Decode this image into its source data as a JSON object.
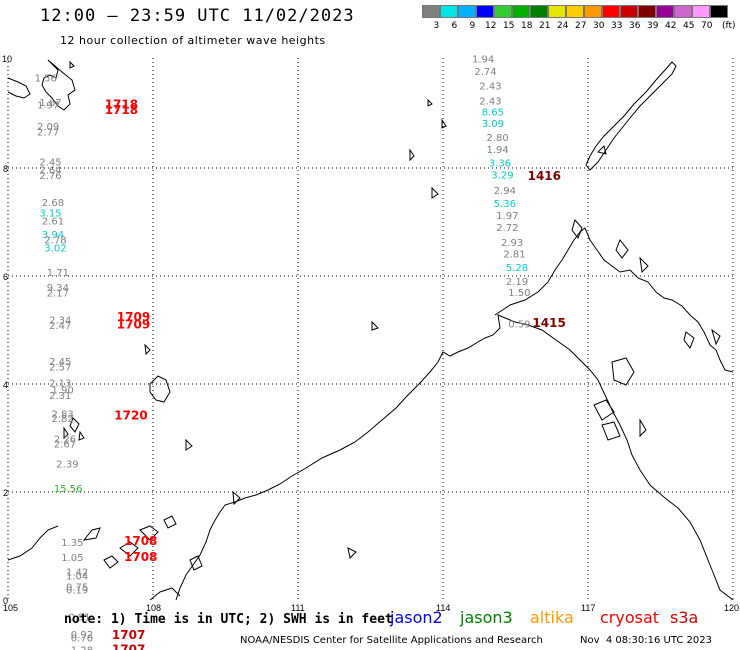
{
  "header": {
    "title": "12:00 – 23:59 UTC 11/02/2023",
    "subtitle": "12 hour collection of altimeter wave heights"
  },
  "legend": {
    "unit": "(ft)",
    "bins": [
      {
        "label": "3",
        "color": "#808080"
      },
      {
        "label": "6",
        "color": "#00e5e5"
      },
      {
        "label": "9",
        "color": "#00b2ff"
      },
      {
        "label": "12",
        "color": "#0000ff"
      },
      {
        "label": "15",
        "color": "#33cc33"
      },
      {
        "label": "18",
        "color": "#00b000"
      },
      {
        "label": "21",
        "color": "#008000"
      },
      {
        "label": "24",
        "color": "#e5e500"
      },
      {
        "label": "27",
        "color": "#ffcc00"
      },
      {
        "label": "30",
        "color": "#ff9900"
      },
      {
        "label": "33",
        "color": "#ff0000"
      },
      {
        "label": "36",
        "color": "#cc0000"
      },
      {
        "label": "39",
        "color": "#800000"
      },
      {
        "label": "42",
        "color": "#990099"
      },
      {
        "label": "45",
        "color": "#cc66cc"
      },
      {
        "label": "70",
        "color": "#ff99ff"
      },
      {
        "label": "",
        "color": "#000000"
      }
    ]
  },
  "axes": {
    "lon_labels": [
      "105",
      "108",
      "111",
      "114",
      "117",
      "120"
    ],
    "lat_labels": [
      "10",
      "8",
      "6",
      "4",
      "2",
      "0"
    ]
  },
  "wave_tracks": [
    {
      "id": "west-track",
      "readings": [
        {
          "lon": 105.55,
          "lat": 9.6,
          "value": "1.56",
          "color": "#808080"
        },
        {
          "lon": 105.65,
          "lat": 9.15,
          "value": "1.67",
          "color": "#808080"
        },
        {
          "lon": 105.6,
          "lat": 9.1,
          "value": "1.97",
          "color": "#808080"
        },
        {
          "lon": 105.6,
          "lat": 8.7,
          "value": "2.09",
          "color": "#808080"
        },
        {
          "lon": 105.6,
          "lat": 8.6,
          "value": "2.77",
          "color": "#808080"
        },
        {
          "lon": 105.65,
          "lat": 8.05,
          "value": "2.45",
          "color": "#808080"
        },
        {
          "lon": 105.65,
          "lat": 7.9,
          "value": "2.64",
          "color": "#808080"
        },
        {
          "lon": 105.65,
          "lat": 7.8,
          "value": "2.76",
          "color": "#808080"
        },
        {
          "lon": 105.7,
          "lat": 7.3,
          "value": "2.68",
          "color": "#808080"
        },
        {
          "lon": 105.65,
          "lat": 7.1,
          "value": "3.15",
          "color": "#00cccc"
        },
        {
          "lon": 105.7,
          "lat": 6.95,
          "value": "2.61",
          "color": "#808080"
        },
        {
          "lon": 105.7,
          "lat": 6.7,
          "value": "3.94",
          "color": "#00cccc"
        },
        {
          "lon": 105.75,
          "lat": 6.6,
          "value": "2.78",
          "color": "#808080"
        },
        {
          "lon": 105.75,
          "lat": 6.45,
          "value": "3.02",
          "color": "#00cccc"
        },
        {
          "lon": 105.8,
          "lat": 6.0,
          "value": "1.71",
          "color": "#808080"
        },
        {
          "lon": 105.8,
          "lat": 5.72,
          "value": "9.34",
          "color": "#808080"
        },
        {
          "lon": 105.8,
          "lat": 5.62,
          "value": "2.17",
          "color": "#808080"
        },
        {
          "lon": 105.85,
          "lat": 5.12,
          "value": "2.34",
          "color": "#808080"
        },
        {
          "lon": 105.85,
          "lat": 5.02,
          "value": "2.47",
          "color": "#808080"
        },
        {
          "lon": 105.85,
          "lat": 4.35,
          "value": "2.45",
          "color": "#808080"
        },
        {
          "lon": 105.85,
          "lat": 4.25,
          "value": "2.57",
          "color": "#808080"
        },
        {
          "lon": 105.85,
          "lat": 3.95,
          "value": "2.13",
          "color": "#808080"
        },
        {
          "lon": 105.9,
          "lat": 3.82,
          "value": "1.90",
          "color": "#808080"
        },
        {
          "lon": 105.85,
          "lat": 3.72,
          "value": "2.31",
          "color": "#808080"
        },
        {
          "lon": 105.9,
          "lat": 3.38,
          "value": "2.83",
          "color": "#808080"
        },
        {
          "lon": 105.9,
          "lat": 3.3,
          "value": "2.82",
          "color": "#808080"
        },
        {
          "lon": 105.95,
          "lat": 2.92,
          "value": "2.26",
          "color": "#808080"
        },
        {
          "lon": 105.95,
          "lat": 2.82,
          "value": "2.67",
          "color": "#808080"
        },
        {
          "lon": 106.0,
          "lat": 2.45,
          "value": "2.39",
          "color": "#808080"
        },
        {
          "lon": 105.95,
          "lat": 2.0,
          "value": "15.56",
          "color": "#33aa33"
        },
        {
          "lon": 106.1,
          "lat": 1.0,
          "value": "1.35",
          "color": "#808080"
        },
        {
          "lon": 106.1,
          "lat": 0.72,
          "value": "1.05",
          "color": "#808080"
        },
        {
          "lon": 106.2,
          "lat": 0.45,
          "value": "1.42",
          "color": "#808080"
        },
        {
          "lon": 106.2,
          "lat": 0.38,
          "value": "1.04",
          "color": "#808080"
        },
        {
          "lon": 106.2,
          "lat": 0.18,
          "value": "0.75",
          "color": "#808080"
        },
        {
          "lon": 106.2,
          "lat": 0.12,
          "value": "0.19",
          "color": "#808080"
        },
        {
          "lon": 106.25,
          "lat": -0.38,
          "value": "0.91",
          "color": "#808080"
        },
        {
          "lon": 106.3,
          "lat": -0.7,
          "value": "0.92",
          "color": "#808080"
        },
        {
          "lon": 106.3,
          "lat": -0.77,
          "value": "0.70",
          "color": "#808080"
        },
        {
          "lon": 106.3,
          "lat": -0.99,
          "value": "1.28",
          "color": "#808080"
        }
      ]
    },
    {
      "id": "east-track",
      "readings": [
        {
          "lon": 114.6,
          "lat": 9.95,
          "value": "1.94",
          "color": "#808080"
        },
        {
          "lon": 114.65,
          "lat": 9.72,
          "value": "2.74",
          "color": "#808080"
        },
        {
          "lon": 114.75,
          "lat": 9.45,
          "value": "2.43",
          "color": "#808080"
        },
        {
          "lon": 114.75,
          "lat": 9.18,
          "value": "2.43",
          "color": "#808080"
        },
        {
          "lon": 114.8,
          "lat": 8.97,
          "value": "8.65",
          "color": "#00cccc"
        },
        {
          "lon": 114.8,
          "lat": 8.76,
          "value": "3.09",
          "color": "#00cccc"
        },
        {
          "lon": 114.9,
          "lat": 8.5,
          "value": "2.80",
          "color": "#808080"
        },
        {
          "lon": 114.9,
          "lat": 8.28,
          "value": "1.94",
          "color": "#808080"
        },
        {
          "lon": 114.95,
          "lat": 8.03,
          "value": "3.36",
          "color": "#00cccc"
        },
        {
          "lon": 115.0,
          "lat": 7.81,
          "value": "3.29",
          "color": "#00cccc"
        },
        {
          "lon": 115.05,
          "lat": 7.52,
          "value": "2.94",
          "color": "#808080"
        },
        {
          "lon": 115.05,
          "lat": 7.28,
          "value": "5.36",
          "color": "#00cccc"
        },
        {
          "lon": 115.1,
          "lat": 7.06,
          "value": "1.97",
          "color": "#808080"
        },
        {
          "lon": 115.1,
          "lat": 6.83,
          "value": "2.72",
          "color": "#808080"
        },
        {
          "lon": 115.2,
          "lat": 6.56,
          "value": "2.93",
          "color": "#808080"
        },
        {
          "lon": 115.25,
          "lat": 6.34,
          "value": "2.81",
          "color": "#808080"
        },
        {
          "lon": 115.3,
          "lat": 6.09,
          "value": "5.28",
          "color": "#00cccc"
        },
        {
          "lon": 115.3,
          "lat": 5.83,
          "value": "2.19",
          "color": "#808080"
        },
        {
          "lon": 115.35,
          "lat": 5.63,
          "value": "1.50",
          "color": "#808080"
        },
        {
          "lon": 115.35,
          "lat": 5.05,
          "value": "0.59",
          "color": "#808080"
        }
      ]
    }
  ],
  "pass_times": [
    {
      "lon": 107.0,
      "lat": 9.1,
      "label": "1718",
      "color": "#ff0000"
    },
    {
      "lon": 107.0,
      "lat": 9.0,
      "label": "1718",
      "color": "#ff0000"
    },
    {
      "lon": 107.25,
      "lat": 5.17,
      "label": "1709",
      "color": "#ff0000"
    },
    {
      "lon": 107.25,
      "lat": 5.03,
      "label": "1709",
      "color": "#ff0000"
    },
    {
      "lon": 107.2,
      "lat": 3.34,
      "label": "1720",
      "color": "#ff0000"
    },
    {
      "lon": 107.4,
      "lat": 1.02,
      "label": "1708",
      "color": "#ff0000"
    },
    {
      "lon": 107.4,
      "lat": 0.72,
      "label": "1708",
      "color": "#ff0000"
    },
    {
      "lon": 107.15,
      "lat": -0.72,
      "label": "1707",
      "color": "#cc0000"
    },
    {
      "lon": 107.15,
      "lat": -0.99,
      "label": "1707",
      "color": "#cc0000"
    },
    {
      "lon": 115.75,
      "lat": 7.78,
      "label": "1416",
      "color": "#800000"
    },
    {
      "lon": 115.85,
      "lat": 5.06,
      "label": "1415",
      "color": "#800000"
    }
  ],
  "footer": {
    "note": "note: 1) Time is in UTC; 2) SWH is in feet",
    "satellites": [
      {
        "name": "jason2",
        "color": "#0000ff"
      },
      {
        "name": "jason3",
        "color": "#008000"
      },
      {
        "name": "altika",
        "color": "#ff9900"
      },
      {
        "name": "cryosat",
        "color": "#ff0000"
      },
      {
        "name": "s3a",
        "color": "#cc0000"
      }
    ],
    "credit": "NOAA/NESDIS Center for Satellite Applications and Research",
    "timestamp": "Nov  4 08:30:16 UTC 2023"
  }
}
